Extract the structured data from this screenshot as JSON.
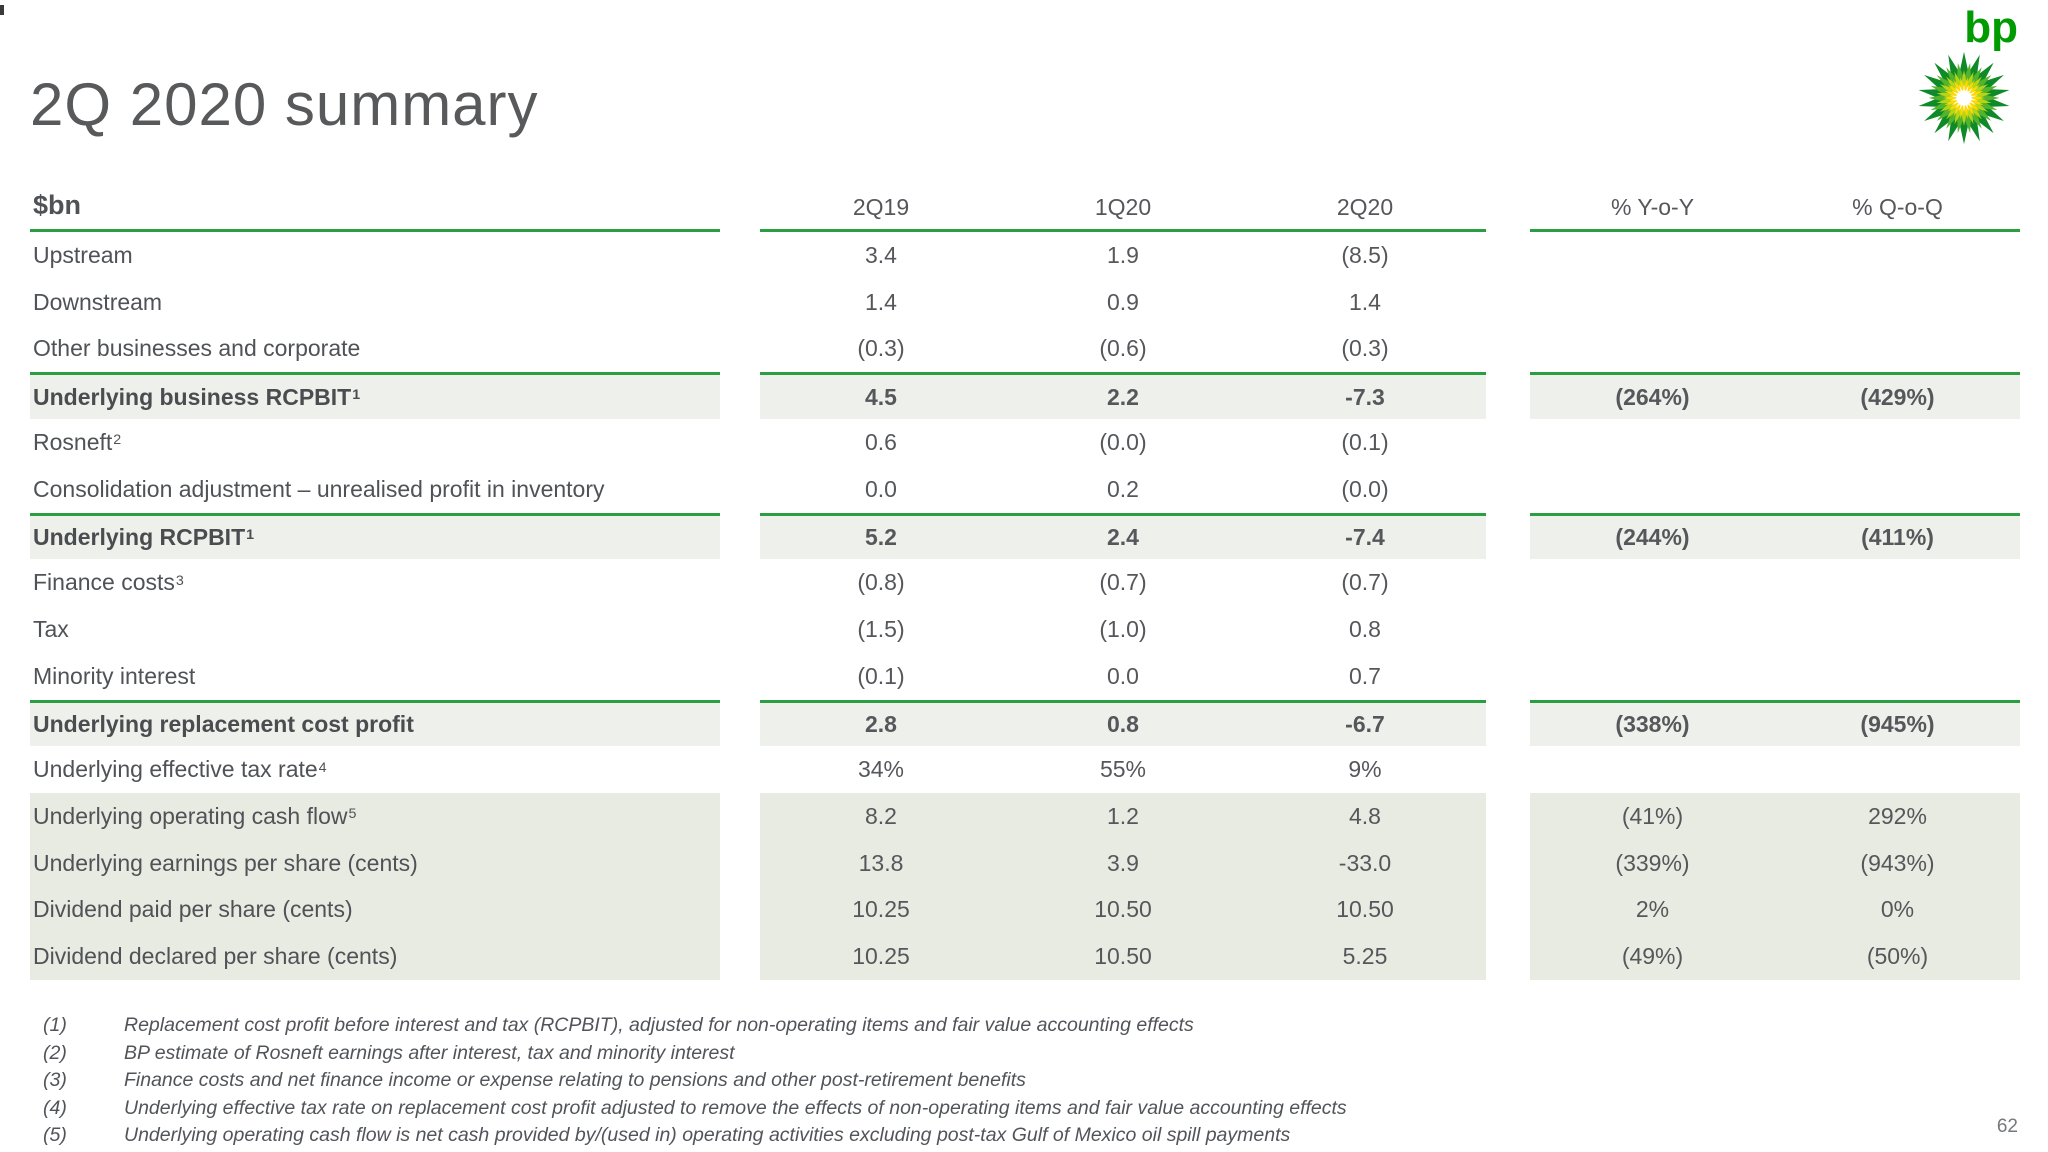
{
  "page": {
    "title": "2Q 2020 summary",
    "page_number": "62"
  },
  "logo": {
    "text": "bp",
    "text_color": "#009B00",
    "helios_colors": [
      "#0E8A28",
      "#54B32C",
      "#B8D417",
      "#FFD900",
      "#FFFFFF"
    ]
  },
  "colors": {
    "accent_green": "#2B9E42",
    "subtotal_row_bg": "#EDF0EB",
    "block_row_bg": "#E8EBE2",
    "title_gray": "#58595B",
    "text_gray": "#4F5256"
  },
  "table": {
    "unit_label": "$bn",
    "columns": [
      "2Q19",
      "1Q20",
      "2Q20",
      "% Y-o-Y",
      "% Q-o-Q"
    ],
    "rows": [
      {
        "label": "Upstream",
        "sup": "",
        "style": "normal",
        "values": [
          "3.4",
          "1.9",
          "(8.5)",
          "",
          ""
        ]
      },
      {
        "label": "Downstream",
        "sup": "",
        "style": "normal",
        "values": [
          "1.4",
          "0.9",
          "1.4",
          "",
          ""
        ]
      },
      {
        "label": "Other businesses and corporate",
        "sup": "",
        "style": "normal",
        "values": [
          "(0.3)",
          "(0.6)",
          "(0.3)",
          "",
          ""
        ]
      },
      {
        "label": "Underlying business RCPBIT",
        "sup": "1",
        "style": "subtotal",
        "values": [
          "4.5",
          "2.2",
          "-7.3",
          "(264%)",
          "(429%)"
        ]
      },
      {
        "label": "Rosneft",
        "sup": "2",
        "style": "normal",
        "values": [
          "0.6",
          "(0.0)",
          "(0.1)",
          "",
          ""
        ]
      },
      {
        "label": "Consolidation adjustment – unrealised profit in inventory",
        "sup": "",
        "style": "normal",
        "values": [
          "0.0",
          "0.2",
          "(0.0)",
          "",
          ""
        ]
      },
      {
        "label": "Underlying RCPBIT",
        "sup": "1",
        "style": "subtotal",
        "values": [
          "5.2",
          "2.4",
          "-7.4",
          "(244%)",
          "(411%)"
        ]
      },
      {
        "label": "Finance costs",
        "sup": "3",
        "style": "normal",
        "values": [
          "(0.8)",
          "(0.7)",
          "(0.7)",
          "",
          ""
        ]
      },
      {
        "label": "Tax",
        "sup": "",
        "style": "normal",
        "values": [
          "(1.5)",
          "(1.0)",
          "0.8",
          "",
          ""
        ]
      },
      {
        "label": "Minority interest",
        "sup": "",
        "style": "normal",
        "values": [
          "(0.1)",
          "0.0",
          "0.7",
          "",
          ""
        ]
      },
      {
        "label": "Underlying replacement cost profit",
        "sup": "",
        "style": "subtotal",
        "values": [
          "2.8",
          "0.8",
          "-6.7",
          "(338%)",
          "(945%)"
        ]
      },
      {
        "label": "Underlying effective tax rate",
        "sup": "4",
        "style": "normal",
        "values": [
          "34%",
          "55%",
          "9%",
          "",
          ""
        ]
      },
      {
        "label": "Underlying operating cash flow",
        "sup": "5",
        "style": "block",
        "values": [
          "8.2",
          "1.2",
          "4.8",
          "(41%)",
          "292%"
        ]
      },
      {
        "label": "Underlying earnings per share (cents)",
        "sup": "",
        "style": "block",
        "values": [
          "13.8",
          "3.9",
          "-33.0",
          "(339%)",
          "(943%)"
        ]
      },
      {
        "label": "Dividend paid per share (cents)",
        "sup": "",
        "style": "block",
        "values": [
          "10.25",
          "10.50",
          "10.50",
          "2%",
          "0%"
        ]
      },
      {
        "label": "Dividend declared per share (cents)",
        "sup": "",
        "style": "block",
        "values": [
          "10.25",
          "10.50",
          "5.25",
          "(49%)",
          "(50%)"
        ]
      }
    ]
  },
  "footnotes": [
    {
      "num": "(1)",
      "text": "Replacement cost profit before interest and tax (RCPBIT), adjusted for non-operating items and fair value accounting effects"
    },
    {
      "num": "(2)",
      "text": "BP estimate of Rosneft earnings after interest, tax and minority interest"
    },
    {
      "num": "(3)",
      "text": "Finance costs and net finance income or expense relating to pensions and other post-retirement benefits"
    },
    {
      "num": "(4)",
      "text": "Underlying effective tax rate on replacement cost profit adjusted to remove the effects of non-operating items and fair value accounting effects"
    },
    {
      "num": "(5)",
      "text": "Underlying operating cash flow is net cash provided by/(used in) operating activities excluding post-tax Gulf of Mexico oil spill payments"
    }
  ]
}
